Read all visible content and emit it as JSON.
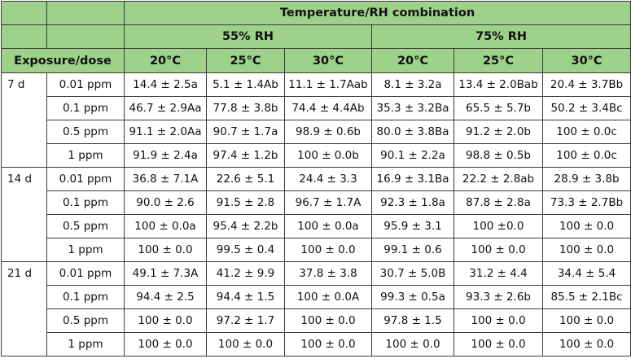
{
  "header": {
    "group_title": "Temperature/RH combination",
    "rh_groups": [
      "55% RH",
      "75% RH"
    ],
    "exposure_label": "Exposure/dose",
    "temps": [
      "20°C",
      "25°C",
      "30°C",
      "20°C",
      "25°C",
      "30°C"
    ]
  },
  "blocks": [
    {
      "exposure": "7 d",
      "rows": [
        {
          "dose": "0.01 ppm",
          "cells": [
            "14.4 ± 2.5a",
            "5.1 ± 1.4Ab",
            "11.1 ± 1.7Aab",
            "8.1 ± 3.2a",
            "13.4 ± 2.0Bab",
            "20.4 ± 3.7Bb"
          ]
        },
        {
          "dose": "0.1 ppm",
          "cells": [
            "46.7 ± 2.9Aa",
            "77.8 ± 3.8b",
            "74.4 ± 4.4Ab",
            "35.3 ± 3.2Ba",
            "65.5 ± 5.7b",
            "50.2 ± 3.4Bc"
          ]
        },
        {
          "dose": "0.5 ppm",
          "cells": [
            "91.1 ± 2.0Aa",
            "90.7 ± 1.7a",
            "98.9 ± 0.6b",
            "80.0 ± 3.8Ba",
            "91.2 ± 2.0b",
            "100 ± 0.0c"
          ]
        },
        {
          "dose": "1 ppm",
          "cells": [
            "91.9 ± 2.4a",
            "97.4 ± 1.2b",
            "100 ± 0.0b",
            "90.1 ± 2.2a",
            "98.8 ± 0.5b",
            "100 ± 0.0c"
          ]
        }
      ]
    },
    {
      "exposure": "14 d",
      "rows": [
        {
          "dose": "0.01 ppm",
          "cells": [
            "36.8 ± 7.1A",
            "22.6 ± 5.1",
            "24.4 ± 3.3",
            "16.9 ± 3.1Ba",
            "22.2 ± 2.8ab",
            "28.9 ± 3.8b"
          ]
        },
        {
          "dose": "0.1 ppm",
          "cells": [
            "90.0 ± 2.6",
            "91.5 ± 2.8",
            "96.7 ± 1.7A",
            "92.3 ± 1.8a",
            "87.8 ± 2.8a",
            "73.3 ± 2.7Bb"
          ]
        },
        {
          "dose": "0.5 ppm",
          "cells": [
            "100 ± 0.0a",
            "95.4 ± 2.2b",
            "100 ± 0.0a",
            "95.9 ± 3.1",
            "100 ±0.0",
            "100 ± 0.0"
          ]
        },
        {
          "dose": "1 ppm",
          "cells": [
            "100 ± 0.0",
            "99.5 ± 0.4",
            "100 ± 0.0",
            "99.1 ± 0.6",
            "100 ± 0.0",
            "100 ± 0.0"
          ]
        }
      ]
    },
    {
      "exposure": "21 d",
      "rows": [
        {
          "dose": "0.01 ppm",
          "cells": [
            "49.1 ± 7.3A",
            "41.2 ± 9.9",
            "37.8 ± 3.8",
            "30.7 ± 5.0B",
            "31.2 ± 4.4",
            "34.4 ± 5.4"
          ]
        },
        {
          "dose": "0.1 ppm",
          "cells": [
            "94.4 ± 2.5",
            "94.4 ± 1.5",
            "100 ± 0.0A",
            "99.3 ± 0.5a",
            "93.3 ± 2.6b",
            "85.5 ± 2.1Bc"
          ]
        },
        {
          "dose": "0.5 ppm",
          "cells": [
            "100 ± 0.0",
            "97.2 ± 1.7",
            "100 ± 0.0",
            "97.8 ± 1.5",
            "100 ± 0.0",
            "100 ± 0.0"
          ]
        },
        {
          "dose": "1 ppm",
          "cells": [
            "100 ± 0.0",
            "100 ± 0.0",
            "100 ± 0.0",
            "100 ± 0.0",
            "100 ± 0.0",
            "100 ± 0.0"
          ]
        }
      ]
    }
  ]
}
